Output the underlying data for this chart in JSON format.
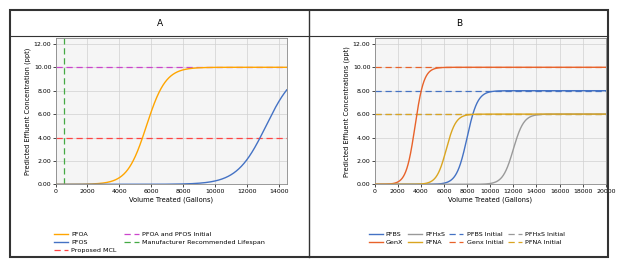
{
  "panel_A": {
    "title": "A",
    "xlabel": "Volume Treated (Gallons)",
    "ylabel": "Predicted Effluent Concentration (ppt)",
    "xlim": [
      0,
      14500
    ],
    "ylim": [
      0,
      12.5
    ],
    "yticks": [
      0.0,
      2.0,
      4.0,
      6.0,
      8.0,
      10.0,
      12.0
    ],
    "xticks": [
      0,
      2000,
      4000,
      6000,
      8000,
      10000,
      12000,
      14000
    ],
    "curves": [
      {
        "name": "PFOA",
        "color": "#FFA500",
        "midpoint": 5700,
        "rate": 0.00165,
        "plateau": 10.0
      },
      {
        "name": "PFOS",
        "color": "#4472C4",
        "midpoint": 13200,
        "rate": 0.0011,
        "plateau": 10.0
      }
    ],
    "hlines": [
      {
        "y": 4.0,
        "color": "#FF4444",
        "label": "Proposed MCL"
      },
      {
        "y": 10.0,
        "color": "#CC44CC",
        "label": "PFOA and PFOS Initial"
      }
    ],
    "vlines": [
      {
        "x": 500,
        "color": "#44AA44",
        "label": "Manufacturer Recommended Lifespan"
      }
    ],
    "legend_items": [
      {
        "type": "solid",
        "color": "#FFA500",
        "label": "PFOA"
      },
      {
        "type": "solid",
        "color": "#4472C4",
        "label": "PFOS"
      },
      {
        "type": "dashed",
        "color": "#FF4444",
        "label": "Proposed MCL"
      },
      {
        "type": "dashed",
        "color": "#CC44CC",
        "label": "PFOA and PFOS Initial"
      },
      {
        "type": "dashed",
        "color": "#44AA44",
        "label": "Manufacturer Recommended Lifespan"
      }
    ]
  },
  "panel_B": {
    "title": "B",
    "xlabel": "Volume Treated (Gallons)",
    "ylabel": "Predicted Effluent Concentrations (ppt)",
    "xlim": [
      0,
      20000
    ],
    "ylim": [
      0,
      12.5
    ],
    "yticks": [
      0.0,
      2.0,
      4.0,
      6.0,
      8.0,
      10.0,
      12.0
    ],
    "xticks": [
      0,
      2000,
      4000,
      6000,
      8000,
      10000,
      12000,
      14000,
      16000,
      18000,
      20000
    ],
    "curves": [
      {
        "name": "PFBS",
        "color": "#4472C4",
        "midpoint": 8000,
        "rate": 0.0022,
        "plateau": 8.0
      },
      {
        "name": "GenX",
        "color": "#E8622A",
        "midpoint": 3500,
        "rate": 0.0026,
        "plateau": 10.0
      },
      {
        "name": "PFHxS",
        "color": "#999999",
        "midpoint": 12000,
        "rate": 0.0022,
        "plateau": 6.0
      },
      {
        "name": "PFNA",
        "color": "#DAA520",
        "midpoint": 6200,
        "rate": 0.0024,
        "plateau": 6.0
      }
    ],
    "hlines": [
      {
        "y": 8.0,
        "color": "#4472C4",
        "label": "PFBS Initial"
      },
      {
        "y": 10.0,
        "color": "#E8622A",
        "label": "Genx Initial"
      },
      {
        "y": 6.0,
        "color": "#999999",
        "label": "PFHxS Initial"
      },
      {
        "y": 6.0,
        "color": "#DAA520",
        "label": "PFNA Initial"
      }
    ],
    "legend_items_row1": [
      {
        "type": "solid",
        "color": "#4472C4",
        "label": "PFBS"
      },
      {
        "type": "solid",
        "color": "#E8622A",
        "label": "GenX"
      },
      {
        "type": "solid",
        "color": "#999999",
        "label": "PFHxS"
      },
      {
        "type": "solid",
        "color": "#DAA520",
        "label": "PFNA"
      }
    ],
    "legend_items_row2": [
      {
        "type": "dashed",
        "color": "#4472C4",
        "label": "PFBS Initial"
      },
      {
        "type": "dashed",
        "color": "#E8622A",
        "label": "Genx Initial"
      },
      {
        "type": "dashed",
        "color": "#999999",
        "label": "PFHxS Initial"
      },
      {
        "type": "dashed",
        "color": "#DAA520",
        "label": "PFNA Initial"
      }
    ]
  },
  "background_color": "#FFFFFF",
  "grid_color": "#D0D0D0",
  "plot_area_color": "#F5F5F5",
  "font_size": 4.8,
  "title_font_size": 6.5,
  "border_color": "#333333"
}
